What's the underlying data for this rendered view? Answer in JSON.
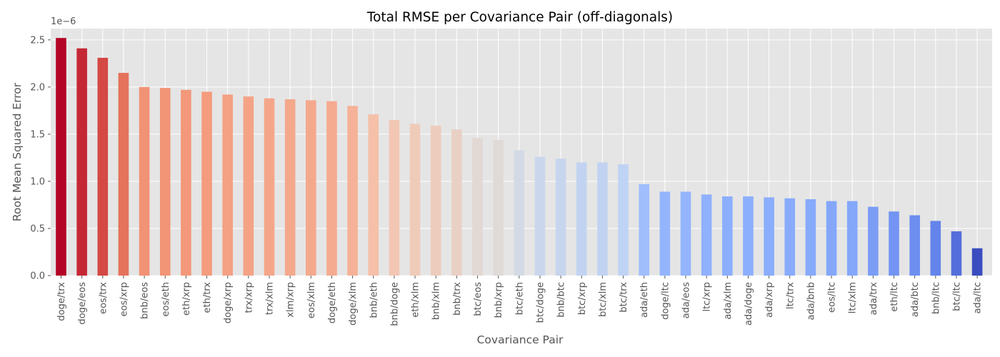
{
  "chart_data": {
    "type": "bar",
    "title": "Total RMSE per Covariance Pair (off-diagonals)",
    "xlabel": "Covariance Pair",
    "ylabel": "Root Mean Squared Error",
    "scale_label": "1e−6",
    "ylim": [
      0,
      2.62
    ],
    "y_ticks": [
      "0.0",
      "0.5",
      "1.0",
      "1.5",
      "2.0",
      "2.5"
    ],
    "grid": true,
    "colormap": "coolwarm",
    "categories": [
      "doge/trx",
      "doge/eos",
      "eos/trx",
      "eos/xrp",
      "bnb/eos",
      "eos/eth",
      "eth/xrp",
      "eth/trx",
      "doge/xrp",
      "trx/xrp",
      "trx/xlm",
      "xlm/xrp",
      "eos/xlm",
      "doge/eth",
      "doge/xlm",
      "bnb/eth",
      "bnb/doge",
      "eth/xlm",
      "bnb/xlm",
      "bnb/trx",
      "btc/eos",
      "bnb/xrp",
      "btc/eth",
      "btc/doge",
      "bnb/btc",
      "btc/xrp",
      "btc/xlm",
      "btc/trx",
      "ada/eth",
      "doge/ltc",
      "ada/eos",
      "ltc/xrp",
      "ada/xlm",
      "ada/doge",
      "ada/xrp",
      "ltc/trx",
      "ada/bnb",
      "eos/ltc",
      "ltc/xlm",
      "ada/trx",
      "eth/ltc",
      "ada/btc",
      "bnb/ltc",
      "btc/ltc",
      "ada/ltc"
    ],
    "values": [
      2.52,
      2.41,
      2.31,
      2.15,
      2.0,
      1.99,
      1.97,
      1.95,
      1.92,
      1.9,
      1.88,
      1.87,
      1.86,
      1.85,
      1.8,
      1.71,
      1.65,
      1.61,
      1.59,
      1.55,
      1.46,
      1.44,
      1.33,
      1.26,
      1.24,
      1.2,
      1.2,
      1.18,
      0.97,
      0.89,
      0.89,
      0.86,
      0.84,
      0.84,
      0.83,
      0.82,
      0.81,
      0.79,
      0.79,
      0.73,
      0.68,
      0.64,
      0.58,
      0.47,
      0.29
    ]
  }
}
